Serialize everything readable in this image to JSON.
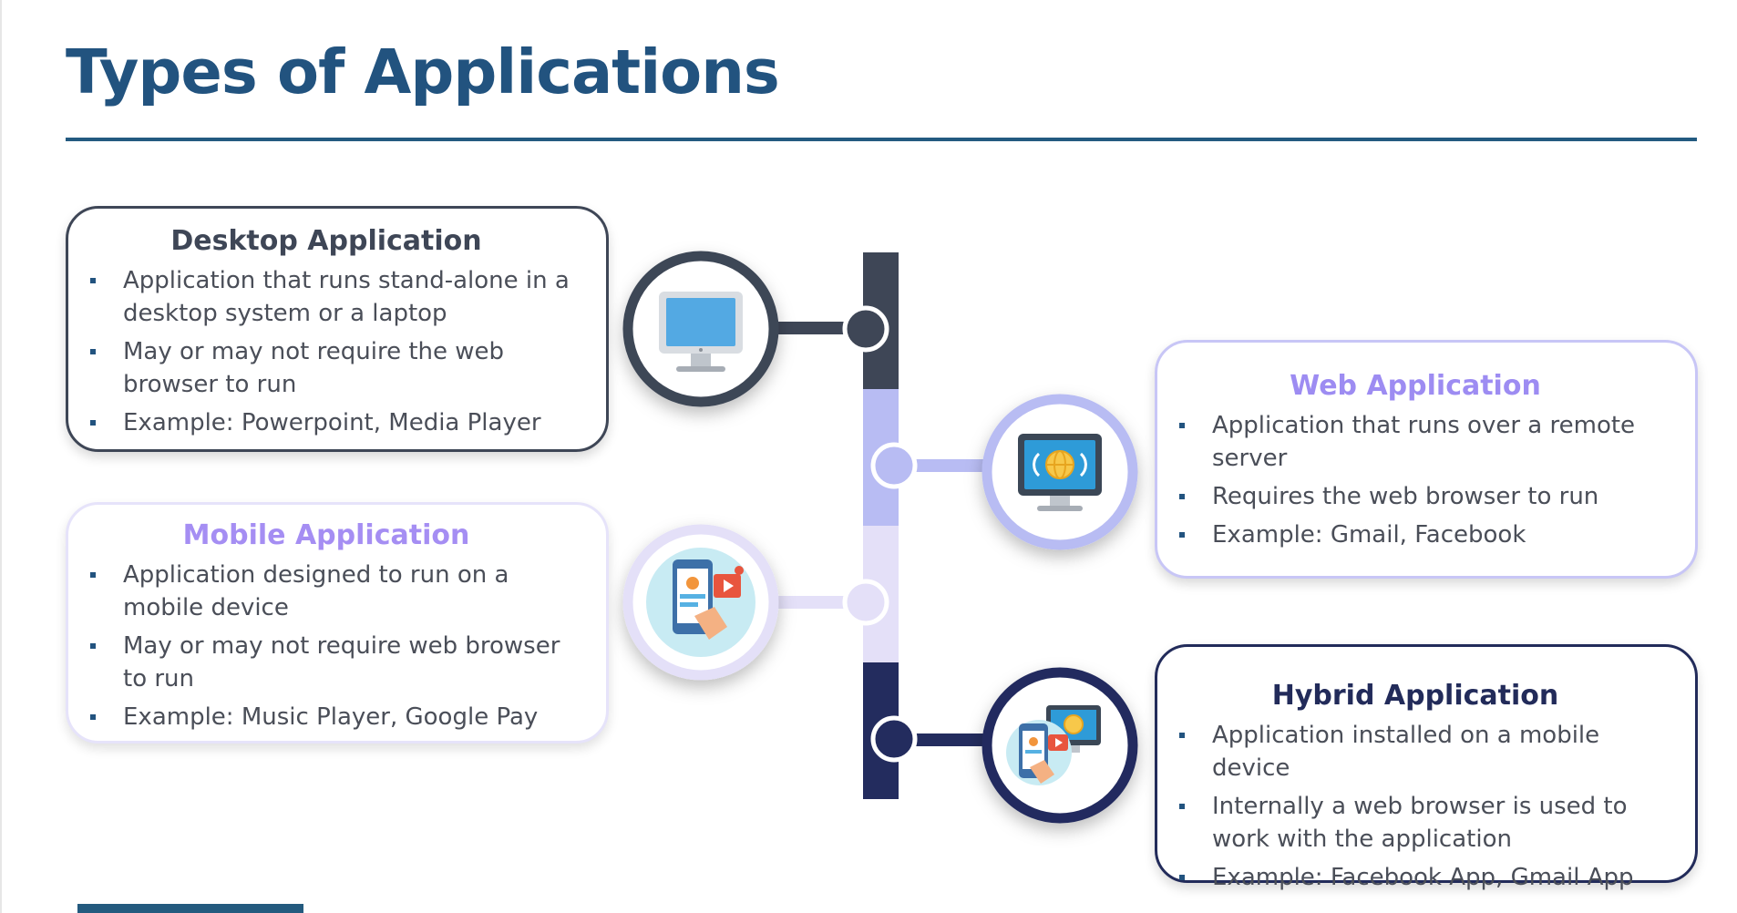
{
  "page": {
    "title": "Types of Applications"
  },
  "colors": {
    "title": "#22537f",
    "desktop": "#3e4656",
    "web": "#b8bcf3",
    "mobile": "#e4e0f8",
    "hybrid": "#232c5e"
  },
  "cards": {
    "desktop": {
      "title": "Desktop Application",
      "icon": "desktop-monitor-icon",
      "bullets": [
        "Application that runs stand-alone in a desktop system or a laptop",
        "May or may not require the web browser to run",
        "Example: Powerpoint, Media Player"
      ]
    },
    "web": {
      "title": "Web Application",
      "icon": "web-globe-monitor-icon",
      "bullets": [
        "Application that runs over a remote server",
        "Requires the web browser to run",
        "Example: Gmail, Facebook"
      ]
    },
    "mobile": {
      "title": "Mobile Application",
      "icon": "mobile-phone-icon",
      "bullets": [
        "Application designed to run on a mobile device",
        "May or may not require web browser to run",
        "Example: Music Player, Google Pay"
      ]
    },
    "hybrid": {
      "title": "Hybrid Application",
      "icon": "hybrid-phone-monitor-icon",
      "bullets": [
        "Application installed on a mobile device",
        "Internally a web browser is used to work with the application",
        "Example: Facebook App, Gmail App"
      ]
    }
  }
}
